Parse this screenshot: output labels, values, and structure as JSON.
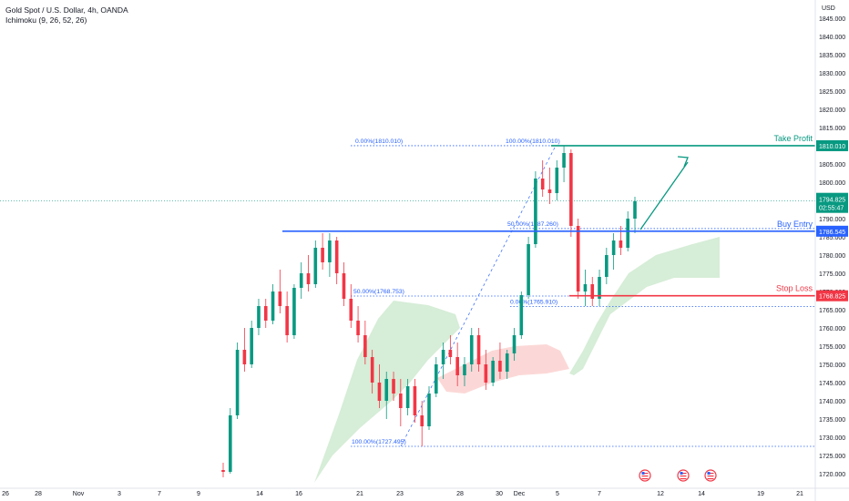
{
  "legend": {
    "symbol": "Gold Spot / U.S. Dollar, 4h, OANDA",
    "indicator": "Ichimoku (9, 26, 52, 26)"
  },
  "currency": "USD",
  "colors": {
    "up": "#089981",
    "down": "#f23645",
    "cloud_bull": "#a5d6a7",
    "cloud_bear": "#f7a9a7",
    "take_profit": "#089981",
    "buy_entry": "#2962ff",
    "stop_loss": "#f23645",
    "fib": "#2962ff",
    "current_price": "#089981"
  },
  "chart_data": {
    "type": "candlestick",
    "y_axis": {
      "ylim": [
        1718,
        1848
      ],
      "ticks": [
        "1720.000",
        "1725.000",
        "1730.000",
        "1735.000",
        "1740.000",
        "1745.000",
        "1750.000",
        "1755.000",
        "1760.000",
        "1765.000",
        "1770.000",
        "1775.000",
        "1780.000",
        "1785.000",
        "1790.000",
        "1795.000",
        "1800.000",
        "1805.000",
        "1810.000",
        "1815.000",
        "1820.000",
        "1825.000",
        "1830.000",
        "1835.000",
        "1840.000",
        "1845.000"
      ]
    },
    "x_axis": {
      "labels": [
        "26",
        "28",
        "Nov",
        "3",
        "7",
        "9",
        "14",
        "16",
        "21",
        "23",
        "28",
        "30",
        "Dec",
        "5",
        "7",
        "12",
        "14",
        "19",
        "21"
      ]
    },
    "levels": [
      {
        "name": "Take Profit",
        "value": 1810.01,
        "label": "1810.010"
      },
      {
        "name": "Buy Entry",
        "value": 1786.545,
        "label": "1786.545"
      },
      {
        "name": "Stop Loss",
        "value": 1768.825,
        "label": "1768.825"
      }
    ],
    "current_price": {
      "value": "1794.825",
      "countdown": "02:55:47"
    },
    "fib_labels": [
      {
        "text": "0.00%(1810.010)",
        "value": 1810.01
      },
      {
        "text": "100.00%(1810.010)",
        "value": 1810.01
      },
      {
        "text": "50.00%(1787.260)",
        "value": 1787.26
      },
      {
        "text": "50.00%(1768.753)",
        "value": 1768.753
      },
      {
        "text": "0.00%(1765.910)",
        "value": 1765.91
      },
      {
        "text": "100.00%(1727.495)",
        "value": 1727.495
      }
    ],
    "candles": [
      [
        1721.0,
        1723.0,
        1719.0,
        1720.5
      ],
      [
        1720.5,
        1738.0,
        1720.0,
        1736.0
      ],
      [
        1736.0,
        1756.0,
        1735.0,
        1754.0
      ],
      [
        1754.0,
        1760.0,
        1748.0,
        1750.0
      ],
      [
        1750.0,
        1762.0,
        1749.0,
        1760.0
      ],
      [
        1760.0,
        1768.0,
        1758.0,
        1766.0
      ],
      [
        1766.0,
        1768.0,
        1760.0,
        1762.0
      ],
      [
        1762.0,
        1772.0,
        1761.0,
        1770.0
      ],
      [
        1770.0,
        1776.0,
        1764.0,
        1766.0
      ],
      [
        1766.0,
        1770.0,
        1756.0,
        1758.0
      ],
      [
        1758.0,
        1772.0,
        1757.0,
        1771.0
      ],
      [
        1771.0,
        1778.0,
        1768.0,
        1775.0
      ],
      [
        1775.0,
        1780.0,
        1770.0,
        1772.0
      ],
      [
        1772.0,
        1784.0,
        1771.0,
        1782.0
      ],
      [
        1782.0,
        1786.0,
        1776.0,
        1778.0
      ],
      [
        1778.0,
        1786.0,
        1774.0,
        1784.0
      ],
      [
        1784.0,
        1785.0,
        1772.0,
        1775.0
      ],
      [
        1775.0,
        1778.0,
        1766.0,
        1768.0
      ],
      [
        1768.0,
        1772.0,
        1760.0,
        1762.0
      ],
      [
        1762.0,
        1766.0,
        1756.0,
        1758.0
      ],
      [
        1758.0,
        1762.0,
        1750.0,
        1752.0
      ],
      [
        1752.0,
        1754.0,
        1742.0,
        1745.0
      ],
      [
        1745.0,
        1750.0,
        1738.0,
        1740.0
      ],
      [
        1740.0,
        1748.0,
        1735.0,
        1746.0
      ],
      [
        1746.0,
        1748.0,
        1740.0,
        1742.0
      ],
      [
        1742.0,
        1746.0,
        1733.0,
        1738.0
      ],
      [
        1738.0,
        1746.0,
        1736.0,
        1744.0
      ],
      [
        1744.0,
        1746.0,
        1734.0,
        1736.0
      ],
      [
        1736.0,
        1740.0,
        1727.5,
        1733.0
      ],
      [
        1733.0,
        1744.0,
        1732.0,
        1742.0
      ],
      [
        1742.0,
        1752.0,
        1741.0,
        1750.0
      ],
      [
        1750.0,
        1756.0,
        1746.0,
        1754.0
      ],
      [
        1754.0,
        1758.0,
        1750.0,
        1752.0
      ],
      [
        1752.0,
        1756.0,
        1744.0,
        1747.0
      ],
      [
        1747.0,
        1752.0,
        1744.0,
        1750.0
      ],
      [
        1750.0,
        1760.0,
        1748.0,
        1758.0
      ],
      [
        1758.0,
        1760.0,
        1748.0,
        1750.0
      ],
      [
        1750.0,
        1754.0,
        1743.0,
        1745.0
      ],
      [
        1745.0,
        1752.0,
        1744.0,
        1751.0
      ],
      [
        1751.0,
        1756.0,
        1746.0,
        1748.0
      ],
      [
        1748.0,
        1754.0,
        1746.0,
        1753.0
      ],
      [
        1753.0,
        1760.0,
        1751.0,
        1758.0
      ],
      [
        1758.0,
        1770.0,
        1757.0,
        1769.0
      ],
      [
        1769.0,
        1785.0,
        1768.0,
        1783.0
      ],
      [
        1783.0,
        1803.0,
        1782.0,
        1801.0
      ],
      [
        1801.0,
        1806.0,
        1796.0,
        1798.0
      ],
      [
        1798.0,
        1804.0,
        1794.0,
        1797.0
      ],
      [
        1797.0,
        1806.0,
        1795.0,
        1804.0
      ],
      [
        1804.0,
        1810.0,
        1800.0,
        1808.0
      ],
      [
        1808.0,
        1809.0,
        1785.0,
        1788.0
      ],
      [
        1788.0,
        1790.0,
        1768.0,
        1770.0
      ],
      [
        1770.0,
        1776.0,
        1766.0,
        1772.0
      ],
      [
        1772.0,
        1774.0,
        1766.0,
        1768.0
      ],
      [
        1768.0,
        1776.0,
        1766.0,
        1774.0
      ],
      [
        1774.0,
        1782.0,
        1772.0,
        1780.0
      ],
      [
        1780.0,
        1786.0,
        1776.0,
        1784.0
      ],
      [
        1784.0,
        1788.0,
        1780.0,
        1782.0
      ],
      [
        1782.0,
        1792.0,
        1781.0,
        1790.0
      ],
      [
        1790.0,
        1796.0,
        1786.0,
        1794.8
      ]
    ]
  }
}
